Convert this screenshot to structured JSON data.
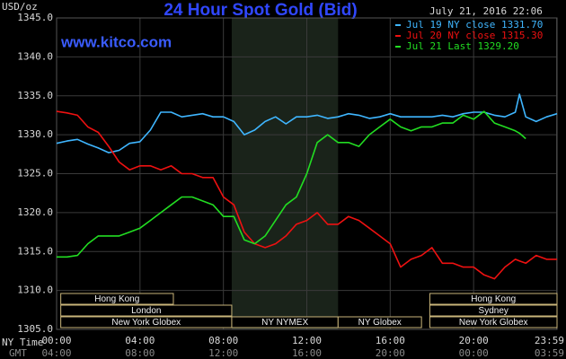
{
  "chart_data": {
    "type": "line",
    "title": "24 Hour Spot Gold (Bid)",
    "y_unit": "USD/oz",
    "timestamp": "July 21, 2016 22:06",
    "watermark": "www.kitco.com",
    "x_row_labels": [
      "NY Time",
      "GMT"
    ],
    "xlim": [
      0,
      24
    ],
    "xticks": [
      {
        "value": 0,
        "label": "00:00"
      },
      {
        "value": 4,
        "label": "04:00"
      },
      {
        "value": 8,
        "label": "08:00"
      },
      {
        "value": 12,
        "label": "12:00"
      },
      {
        "value": 16,
        "label": "16:00"
      },
      {
        "value": 20,
        "label": "20:00"
      },
      {
        "value": 23.983,
        "label": "23:59"
      }
    ],
    "gmt_labels": [
      "04:00",
      "08:00",
      "12:00",
      "16:00",
      "20:00",
      "00:00",
      "03:59"
    ],
    "ylim": [
      1305,
      1345
    ],
    "yticks": [
      {
        "value": 1305,
        "label": "1305.0"
      },
      {
        "value": 1310,
        "label": "1310.0"
      },
      {
        "value": 1315,
        "label": "1315.0"
      },
      {
        "value": 1320,
        "label": "1320.0"
      },
      {
        "value": 1325,
        "label": "1325.0"
      },
      {
        "value": 1330,
        "label": "1330.0"
      },
      {
        "value": 1335,
        "label": "1335.0"
      },
      {
        "value": 1340,
        "label": "1340.0"
      },
      {
        "value": 1345,
        "label": "1345.0"
      }
    ],
    "grid": true,
    "legend": "top-right",
    "x": [
      0,
      0.5,
      1,
      1.5,
      2,
      2.5,
      3,
      3.5,
      4,
      4.5,
      5,
      5.5,
      6,
      6.5,
      7,
      7.5,
      8,
      8.5,
      9,
      9.5,
      10,
      10.5,
      11,
      11.5,
      12,
      12.5,
      13,
      13.5,
      14,
      14.5,
      15,
      15.5,
      16,
      16.5,
      17,
      17.5,
      18,
      18.5,
      19,
      19.5,
      20,
      20.5,
      21,
      21.5,
      22,
      22.2,
      22.5,
      23,
      23.5,
      24
    ],
    "series": [
      {
        "name": "Jul 19 NY close 1331.70",
        "color": "#3fb6ff",
        "values": [
          1328.9,
          1329.2,
          1329.4,
          1328.8,
          1328.3,
          1327.7,
          1328.0,
          1328.9,
          1329.1,
          1330.6,
          1332.9,
          1332.9,
          1332.3,
          1332.5,
          1332.7,
          1332.3,
          1332.3,
          1331.7,
          1330.0,
          1330.6,
          1331.7,
          1332.3,
          1331.4,
          1332.3,
          1332.3,
          1332.5,
          1332.1,
          1332.3,
          1332.7,
          1332.5,
          1332.1,
          1332.3,
          1332.7,
          1332.3,
          1332.3,
          1332.3,
          1332.3,
          1332.5,
          1332.3,
          1332.7,
          1332.9,
          1332.9,
          1332.5,
          1332.3,
          1332.9,
          1335.2,
          1332.3,
          1331.7,
          1332.3,
          1332.7
        ]
      },
      {
        "name": "Jul 20 NY close 1315.30",
        "color": "#ee1111",
        "values": [
          1333.0,
          1332.8,
          1332.5,
          1331.0,
          1330.3,
          1328.5,
          1326.5,
          1325.5,
          1326.0,
          1326.0,
          1325.5,
          1326.0,
          1325.0,
          1325.0,
          1324.5,
          1324.5,
          1322.0,
          1321.0,
          1317.5,
          1316.0,
          1315.5,
          1316.0,
          1317.0,
          1318.5,
          1319.0,
          1320.0,
          1318.5,
          1318.5,
          1319.5,
          1319.0,
          1318.0,
          1317.0,
          1316.0,
          1313.0,
          1314.0,
          1314.5,
          1315.5,
          1313.5,
          1313.5,
          1313.0,
          1313.0,
          1312.0,
          1311.5,
          1313.0,
          1314.0,
          1313.8,
          1313.5,
          1314.5,
          1314.0,
          1314.0
        ]
      },
      {
        "name": "Jul 21 Last 1329.20",
        "color": "#22dd22",
        "values": [
          1314.3,
          1314.3,
          1314.5,
          1316.0,
          1317.0,
          1317.0,
          1317.0,
          1317.5,
          1318.0,
          1319.0,
          1320.0,
          1321.0,
          1322.0,
          1322.0,
          1321.5,
          1321.0,
          1319.5,
          1319.5,
          1316.5,
          1316.0,
          1317.0,
          1319.0,
          1321.0,
          1322.0,
          1325.0,
          1329.0,
          1330.0,
          1329.0,
          1329.0,
          1328.5,
          1330.0,
          1331.0,
          1332.0,
          1331.0,
          1330.5,
          1331.0,
          1331.0,
          1331.5,
          1331.5,
          1332.5,
          1332.0,
          1333.0,
          1331.5,
          1331.0,
          1330.5,
          1330.2,
          1329.5,
          null,
          null,
          null
        ]
      }
    ],
    "sessions": [
      {
        "label": "Hong Kong",
        "start": 0.2,
        "end": 5.6,
        "row": 0
      },
      {
        "label": "London",
        "start": 0.2,
        "end": 8.4,
        "row": 1
      },
      {
        "label": "New York Globex",
        "start": 0.2,
        "end": 8.4,
        "row": 2
      },
      {
        "label": "NY NYMEX",
        "start": 8.4,
        "end": 13.5,
        "row": 2,
        "highlight": true
      },
      {
        "label": "NY Globex",
        "start": 13.5,
        "end": 17.5,
        "row": 2
      },
      {
        "label": "Hong Kong",
        "start": 17.9,
        "end": 24,
        "row": 0
      },
      {
        "label": "Sydney",
        "start": 17.9,
        "end": 24,
        "row": 1
      },
      {
        "label": "New York Globex",
        "start": 17.9,
        "end": 24,
        "row": 2
      }
    ]
  }
}
